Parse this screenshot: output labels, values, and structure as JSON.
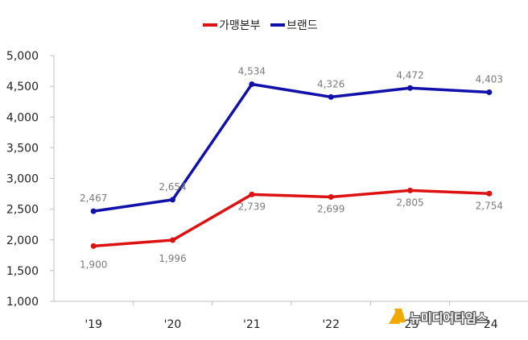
{
  "chart_data": {
    "type": "line",
    "categories": [
      "'19",
      "'20",
      "'21",
      "'22",
      "'23",
      "'24"
    ],
    "series": [
      {
        "name": "가맹본부",
        "color": "#dd1111",
        "values": [
          1900,
          1996,
          2739,
          2699,
          2805,
          2754
        ]
      },
      {
        "name": "브랜드",
        "color": "#1111aa",
        "values": [
          2467,
          2654,
          4534,
          4326,
          4472,
          4403
        ]
      }
    ],
    "data_labels": {
      "가맹본부": [
        "1,900",
        "1,996",
        "2,739",
        "2,699",
        "2,805",
        "2,754"
      ],
      "브랜드": [
        "2,467",
        "2,654",
        "4,534",
        "4,326",
        "4,472",
        "4,403"
      ]
    },
    "yticks": [
      "1,000",
      "1,500",
      "2,000",
      "2,500",
      "3,000",
      "3,500",
      "4,000",
      "4,500",
      "5,000"
    ],
    "ylim": [
      1000,
      5000
    ],
    "grid": false,
    "legend_position": "top"
  },
  "watermark": {
    "text": "뉴미디어타임스",
    "icon": "logo-icon",
    "color": "#f2a900"
  }
}
